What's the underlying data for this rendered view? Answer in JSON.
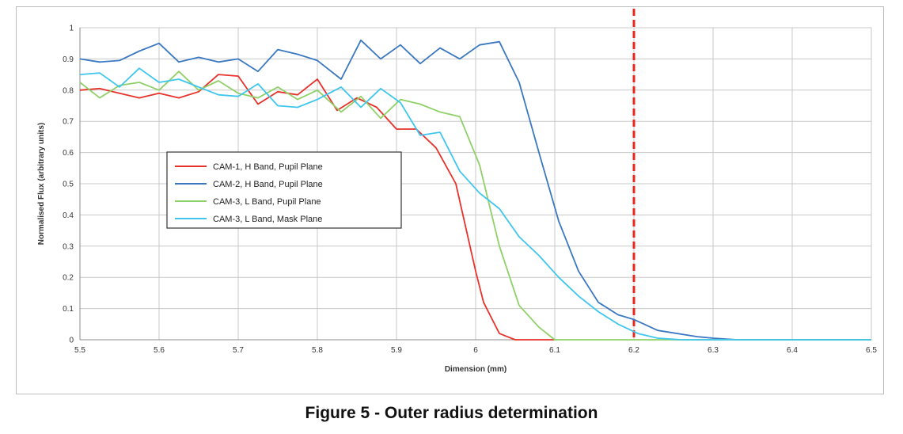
{
  "caption": "Figure 5 - Outer radius determination",
  "chart_data": {
    "type": "line",
    "xlabel": "Dimension (mm)",
    "ylabel": "Normalised Flux (arbitrary units)",
    "xlim": [
      5.5,
      6.5
    ],
    "ylim": [
      0,
      1
    ],
    "xticks": [
      "5.5",
      "5.6",
      "5.7",
      "5.8",
      "5.9",
      "6",
      "6.1",
      "6.2",
      "6.3",
      "6.4",
      "6.5"
    ],
    "yticks": [
      "0",
      "0.1",
      "0.2",
      "0.3",
      "0.4",
      "0.5",
      "0.6",
      "0.7",
      "0.8",
      "0.9",
      "1"
    ],
    "grid": true,
    "legend_position": "center-left",
    "reference_line": {
      "x": 6.2,
      "color": "#e8261c",
      "style": "dashed"
    },
    "series": [
      {
        "name": "CAM-1, H Band, Pupil Plane",
        "color": "#e8312a",
        "x": [
          5.5,
          5.525,
          5.55,
          5.575,
          5.6,
          5.625,
          5.65,
          5.675,
          5.7,
          5.725,
          5.75,
          5.775,
          5.8,
          5.825,
          5.85,
          5.875,
          5.9,
          5.925,
          5.95,
          5.975,
          6.0,
          6.01,
          6.03,
          6.05,
          6.1
        ],
        "y": [
          0.8,
          0.805,
          0.79,
          0.775,
          0.79,
          0.775,
          0.795,
          0.85,
          0.845,
          0.755,
          0.795,
          0.785,
          0.835,
          0.735,
          0.775,
          0.745,
          0.675,
          0.675,
          0.615,
          0.5,
          0.22,
          0.12,
          0.02,
          0.0,
          0.0
        ]
      },
      {
        "name": "CAM-2, H Band, Pupil Plane",
        "color": "#3a78c2",
        "x": [
          5.5,
          5.525,
          5.55,
          5.575,
          5.6,
          5.625,
          5.65,
          5.675,
          5.7,
          5.725,
          5.75,
          5.775,
          5.8,
          5.83,
          5.855,
          5.88,
          5.905,
          5.93,
          5.955,
          5.98,
          6.005,
          6.03,
          6.055,
          6.08,
          6.105,
          6.13,
          6.155,
          6.18,
          6.2,
          6.23,
          6.28,
          6.3,
          6.33,
          6.5
        ],
        "y": [
          0.9,
          0.89,
          0.895,
          0.925,
          0.95,
          0.89,
          0.905,
          0.89,
          0.9,
          0.86,
          0.93,
          0.915,
          0.895,
          0.835,
          0.96,
          0.9,
          0.945,
          0.885,
          0.935,
          0.9,
          0.945,
          0.955,
          0.825,
          0.6,
          0.38,
          0.22,
          0.12,
          0.08,
          0.065,
          0.03,
          0.01,
          0.005,
          0.0,
          0.0
        ]
      },
      {
        "name": "CAM-3, L Band, Pupil Plane",
        "color": "#8fd068",
        "x": [
          5.5,
          5.525,
          5.55,
          5.575,
          5.6,
          5.625,
          5.65,
          5.675,
          5.7,
          5.725,
          5.75,
          5.775,
          5.8,
          5.83,
          5.855,
          5.88,
          5.905,
          5.93,
          5.955,
          5.98,
          6.005,
          6.03,
          6.055,
          6.08,
          6.1,
          6.2,
          6.5
        ],
        "y": [
          0.825,
          0.775,
          0.815,
          0.825,
          0.8,
          0.86,
          0.8,
          0.83,
          0.79,
          0.775,
          0.81,
          0.77,
          0.8,
          0.73,
          0.78,
          0.71,
          0.77,
          0.755,
          0.73,
          0.715,
          0.56,
          0.3,
          0.11,
          0.04,
          0.0,
          0.0,
          0.0
        ]
      },
      {
        "name": "CAM-3, L Band, Mask Plane",
        "color": "#3fc6ee",
        "x": [
          5.5,
          5.525,
          5.55,
          5.575,
          5.6,
          5.625,
          5.65,
          5.675,
          5.7,
          5.725,
          5.75,
          5.775,
          5.8,
          5.83,
          5.855,
          5.88,
          5.905,
          5.93,
          5.955,
          5.98,
          6.005,
          6.03,
          6.055,
          6.08,
          6.105,
          6.13,
          6.155,
          6.18,
          6.205,
          6.23,
          6.26,
          6.3,
          6.5
        ],
        "y": [
          0.85,
          0.855,
          0.81,
          0.87,
          0.825,
          0.835,
          0.81,
          0.785,
          0.78,
          0.82,
          0.75,
          0.745,
          0.77,
          0.81,
          0.745,
          0.805,
          0.76,
          0.655,
          0.665,
          0.54,
          0.47,
          0.42,
          0.33,
          0.27,
          0.2,
          0.14,
          0.09,
          0.05,
          0.02,
          0.005,
          0.0,
          0.0,
          0.0
        ]
      }
    ]
  }
}
